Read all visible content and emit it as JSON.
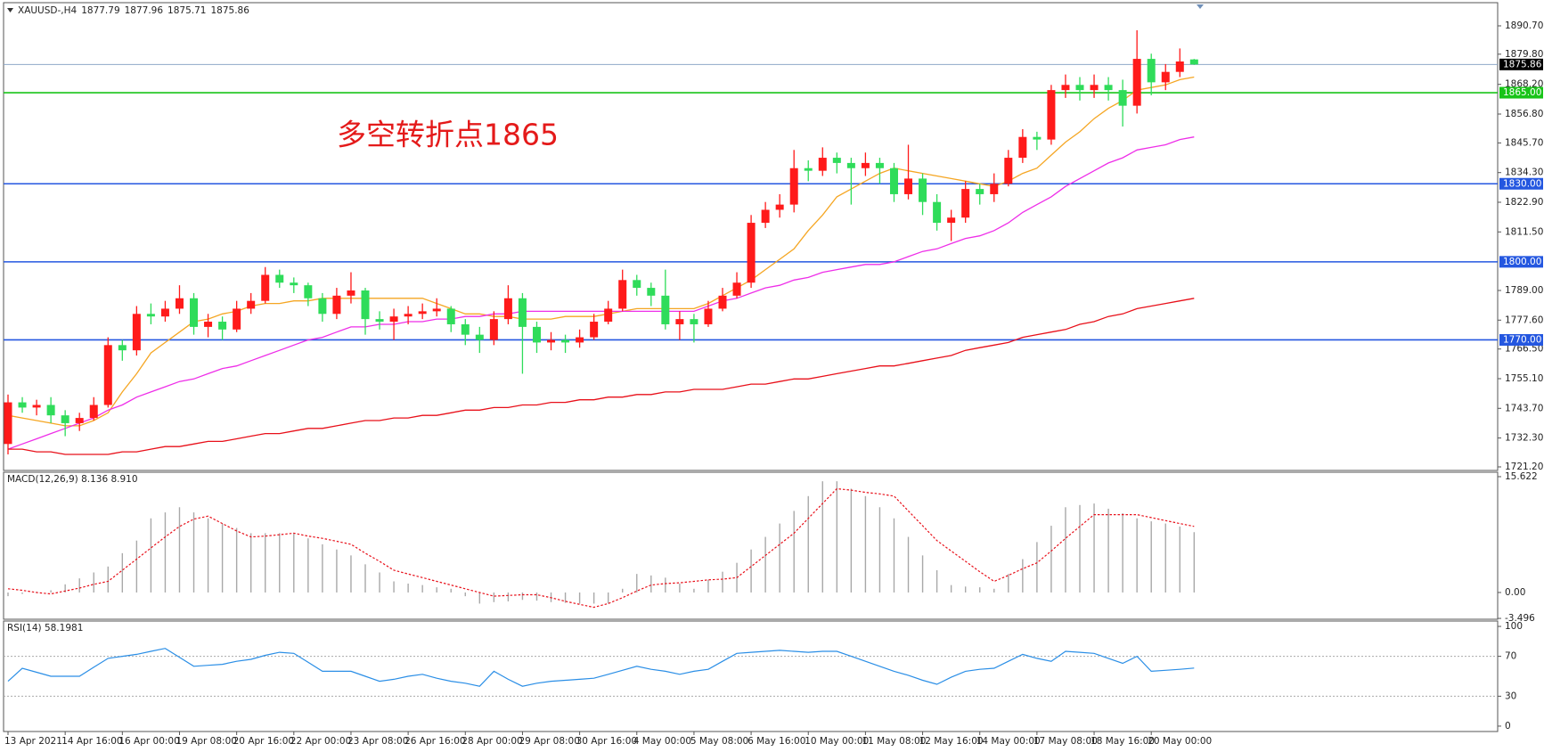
{
  "chart_data": [
    {
      "type": "candlestick",
      "title": "XAUUSD-,H4",
      "annotation": "多空转折点1865",
      "up_color": "#ff1a1a",
      "down_color": "#2fdc5a",
      "categories": [
        "13 Apr 2021",
        null,
        null,
        null,
        "14 Apr 16:00",
        null,
        null,
        null,
        "16 Apr 00:00",
        null,
        null,
        null,
        "19 Apr 08:00",
        null,
        null,
        null,
        "20 Apr 16:00",
        null,
        null,
        null,
        "22 Apr 00:00",
        null,
        null,
        null,
        "23 Apr 08:00",
        null,
        null,
        null,
        "26 Apr 16:00",
        null,
        null,
        null,
        "28 Apr 00:00",
        null,
        null,
        null,
        "29 Apr 08:00",
        null,
        null,
        null,
        "30 Apr 16:00",
        null,
        null,
        null,
        "4 May 00:00",
        null,
        null,
        null,
        "5 May 08:00",
        null,
        null,
        null,
        "6 May 16:00",
        null,
        null,
        null,
        "10 May 00:00",
        null,
        null,
        null,
        "11 May 08:00",
        null,
        null,
        null,
        "12 May 16:00",
        null,
        null,
        null,
        "14 May 00:00",
        null,
        null,
        null,
        "17 May 08:00",
        null,
        null,
        null,
        "18 May 16:00",
        null,
        null,
        null,
        "20 May 00:00",
        null,
        null,
        null
      ],
      "open": [
        1730,
        1746,
        1744,
        1745,
        1741,
        1738,
        1740,
        1745,
        1768,
        1766,
        1780,
        1779,
        1782,
        1786,
        1775,
        1777,
        1774,
        1782,
        1785,
        1795,
        1792,
        1791,
        1786,
        1780,
        1787,
        1789,
        1778,
        1777,
        1779,
        1780,
        1781,
        1782,
        1776,
        1772,
        1770,
        1778,
        1786,
        1775,
        1769,
        1770,
        1769,
        1771,
        1777,
        1782,
        1793,
        1790,
        1787,
        1776,
        1778,
        1776,
        1782,
        1787,
        1792,
        1815,
        1820,
        1822,
        1836,
        1835,
        1840,
        1838,
        1836,
        1838,
        1836,
        1826,
        1832,
        1823,
        1815,
        1817,
        1828,
        1826,
        1830,
        1840,
        1848,
        1847,
        1866,
        1868,
        1866,
        1868,
        1866,
        1860,
        1878,
        1869,
        1873,
        1877.79
      ],
      "high": [
        1749,
        1748,
        1747,
        1748,
        1743,
        1742,
        1748,
        1771,
        1770,
        1783,
        1784,
        1785,
        1791,
        1788,
        1780,
        1779,
        1785,
        1788,
        1798,
        1797,
        1794,
        1792,
        1788,
        1790,
        1796,
        1790,
        1781,
        1782,
        1783,
        1784,
        1786,
        1783,
        1778,
        1775,
        1781,
        1791,
        1788,
        1777,
        1773,
        1772,
        1774,
        1780,
        1785,
        1797,
        1795,
        1792,
        1797,
        1781,
        1780,
        1785,
        1790,
        1796,
        1818,
        1823,
        1826,
        1843,
        1839,
        1844,
        1842,
        1840,
        1842,
        1840,
        1838,
        1845,
        1834,
        1826,
        1820,
        1831,
        1830,
        1834,
        1843,
        1851,
        1850,
        1868,
        1872,
        1871,
        1872,
        1871,
        1870,
        1889,
        1880,
        1876,
        1882,
        1877.96
      ],
      "low": [
        1726,
        1742,
        1741,
        1738,
        1733,
        1735,
        1739,
        1744,
        1762,
        1764,
        1776,
        1777,
        1780,
        1772,
        1771,
        1770,
        1773,
        1780,
        1784,
        1790,
        1788,
        1783,
        1777,
        1778,
        1784,
        1772,
        1774,
        1770,
        1776,
        1778,
        1779,
        1773,
        1768,
        1765,
        1768,
        1776,
        1757,
        1765,
        1766,
        1765,
        1767,
        1770,
        1776,
        1781,
        1787,
        1783,
        1774,
        1770,
        1769,
        1775,
        1781,
        1786,
        1790,
        1813,
        1817,
        1819,
        1831,
        1833,
        1834,
        1822,
        1833,
        1830,
        1823,
        1824,
        1818,
        1812,
        1808,
        1815,
        1822,
        1823,
        1829,
        1838,
        1843,
        1845,
        1863,
        1862,
        1863,
        1862,
        1852,
        1857,
        1864,
        1866,
        1871,
        1875.71
      ],
      "close": [
        1746,
        1744,
        1745,
        1741,
        1738,
        1740,
        1745,
        1768,
        1766,
        1780,
        1779,
        1782,
        1786,
        1775,
        1777,
        1774,
        1782,
        1785,
        1795,
        1792,
        1791,
        1786,
        1780,
        1787,
        1789,
        1778,
        1777,
        1779,
        1780,
        1781,
        1782,
        1776,
        1772,
        1770,
        1778,
        1786,
        1775,
        1769,
        1770,
        1769,
        1771,
        1777,
        1782,
        1793,
        1790,
        1787,
        1776,
        1778,
        1776,
        1782,
        1787,
        1792,
        1815,
        1820,
        1822,
        1836,
        1835,
        1840,
        1838,
        1836,
        1838,
        1836,
        1826,
        1832,
        1823,
        1815,
        1817,
        1828,
        1826,
        1830,
        1840,
        1848,
        1847,
        1866,
        1868,
        1866,
        1868,
        1866,
        1860,
        1878,
        1869,
        1873,
        1877,
        1875.86
      ],
      "series": [
        {
          "color": "#f5a623",
          "values": [
            1741,
            1740,
            1739,
            1738,
            1737,
            1737,
            1739,
            1742,
            1750,
            1757,
            1765,
            1769,
            1773,
            1777,
            1778,
            1780,
            1781,
            1783,
            1784,
            1784,
            1785,
            1785,
            1786,
            1786,
            1786,
            1786,
            1786,
            1786,
            1786,
            1786,
            1784,
            1782,
            1780,
            1780,
            1779,
            1779,
            1778,
            1778,
            1778,
            1779,
            1779,
            1779,
            1780,
            1781,
            1782,
            1782,
            1782,
            1782,
            1782,
            1784,
            1787,
            1790,
            1793,
            1797,
            1801,
            1805,
            1812,
            1818,
            1825,
            1828,
            1831,
            1834,
            1836,
            1835,
            1834,
            1833,
            1832,
            1831,
            1830,
            1829,
            1831,
            1834,
            1836,
            1841,
            1846,
            1850,
            1855,
            1859,
            1862,
            1866,
            1867,
            1868,
            1870,
            1871
          ]
        },
        {
          "color": "#ee2ee8",
          "values": [
            1728,
            1730,
            1732,
            1734,
            1736,
            1738,
            1740,
            1743,
            1745,
            1748,
            1750,
            1752,
            1754,
            1755,
            1757,
            1759,
            1760,
            1762,
            1764,
            1766,
            1768,
            1770,
            1771,
            1773,
            1775,
            1775,
            1776,
            1776,
            1777,
            1777,
            1778,
            1778,
            1779,
            1779,
            1780,
            1780,
            1781,
            1781,
            1781,
            1781,
            1781,
            1781,
            1781,
            1781,
            1781,
            1781,
            1781,
            1781,
            1781,
            1783,
            1785,
            1786,
            1788,
            1790,
            1791,
            1793,
            1794,
            1796,
            1797,
            1798,
            1799,
            1799,
            1800,
            1802,
            1804,
            1805,
            1807,
            1809,
            1810,
            1812,
            1815,
            1819,
            1822,
            1825,
            1829,
            1832,
            1835,
            1838,
            1840,
            1843,
            1844,
            1845,
            1847,
            1848
          ]
        },
        {
          "color": "#e8101a",
          "values": [
            1728,
            1728,
            1727,
            1727,
            1726,
            1726,
            1726,
            1726,
            1727,
            1727,
            1728,
            1729,
            1729,
            1730,
            1731,
            1731,
            1732,
            1733,
            1734,
            1734,
            1735,
            1736,
            1736,
            1737,
            1738,
            1739,
            1739,
            1740,
            1740,
            1741,
            1741,
            1742,
            1743,
            1743,
            1744,
            1744,
            1745,
            1745,
            1746,
            1746,
            1747,
            1747,
            1748,
            1748,
            1749,
            1749,
            1750,
            1750,
            1751,
            1751,
            1751,
            1752,
            1753,
            1753,
            1754,
            1755,
            1755,
            1756,
            1757,
            1758,
            1759,
            1760,
            1760,
            1761,
            1762,
            1763,
            1764,
            1766,
            1767,
            1768,
            1769,
            1771,
            1772,
            1773,
            1774,
            1776,
            1777,
            1779,
            1780,
            1782,
            1783,
            1784,
            1785,
            1786
          ]
        }
      ],
      "levels": [
        {
          "value": 1865,
          "label": "1865.00",
          "color": "#18c418"
        },
        {
          "value": 1830,
          "label": "1830.00",
          "color": "#2457e0"
        },
        {
          "value": 1800,
          "label": "1800.00",
          "color": "#2457e0"
        },
        {
          "value": 1770,
          "label": "1770.00",
          "color": "#2457e0"
        }
      ],
      "current_price": {
        "value": 1875.86,
        "label": "1875.86",
        "color": "#8fa8c8"
      },
      "ylim": [
        1719.83,
        1899.6
      ],
      "yticks": [
        {
          "value": 1890.7,
          "label": "1890.70"
        },
        {
          "value": 1879.8,
          "label": "1879.80"
        },
        {
          "value": 1868.2,
          "label": "1868.20"
        },
        {
          "value": 1856.8,
          "label": "1856.80"
        },
        {
          "value": 1845.7,
          "label": "1845.70"
        },
        {
          "value": 1834.3,
          "label": "1834.30"
        },
        {
          "value": 1822.9,
          "label": "1822.90"
        },
        {
          "value": 1811.5,
          "label": "1811.50"
        },
        {
          "value": 1789,
          "label": "1789.00"
        },
        {
          "value": 1777.6,
          "label": "1777.60"
        },
        {
          "value": 1766.5,
          "label": "1766.50"
        },
        {
          "value": 1755.1,
          "label": "1755.10"
        },
        {
          "value": 1743.7,
          "label": "1743.70"
        },
        {
          "value": 1732.3,
          "label": "1732.30"
        },
        {
          "value": 1721.2,
          "label": "1721.20"
        }
      ]
    },
    {
      "type": "macd",
      "title": "MACD(12,26,9) 8.136 8.910",
      "histogram": {
        "color": "#a8a8a8",
        "values": [
          -0.5,
          -0.2,
          0.1,
          0.3,
          1.1,
          1.9,
          2.7,
          3.5,
          5.3,
          7,
          10,
          10.8,
          11.5,
          10.8,
          10,
          9.3,
          8.7,
          8,
          8,
          8,
          8,
          7.3,
          6.5,
          5.8,
          5,
          3.8,
          2.7,
          1.5,
          1.2,
          1,
          0.7,
          0.5,
          -0.5,
          -1.5,
          -1.3,
          -1.2,
          -1,
          -1.1,
          -1.3,
          -1.4,
          -1.5,
          -1.5,
          -1.5,
          0.5,
          2.5,
          2.3,
          2,
          1.2,
          0.5,
          1.7,
          2.8,
          4,
          5.8,
          7.5,
          9.3,
          11,
          13,
          15,
          15,
          14,
          13,
          11.5,
          10,
          7.5,
          5,
          3,
          1,
          0.8,
          0.7,
          0.5,
          2.5,
          4.5,
          6.8,
          9,
          11.5,
          11.8,
          12,
          11.3,
          10.7,
          10,
          9.6,
          9.3,
          8.9,
          8.136
        ]
      },
      "signal": {
        "color": "#e8101a",
        "values": [
          0.5,
          0.3,
          0,
          -0.2,
          0.2,
          0.6,
          1.1,
          1.5,
          3,
          4.5,
          6,
          7.5,
          8.9,
          9.9,
          10.3,
          9.3,
          8.3,
          7.5,
          7.6,
          7.8,
          8,
          7.6,
          7.3,
          6.9,
          6.5,
          5.3,
          4.2,
          3,
          2.5,
          2,
          1.5,
          1,
          0.5,
          0,
          -0.5,
          -0.4,
          -0.3,
          -0.3,
          -0.7,
          -1.2,
          -1.6,
          -2,
          -1.5,
          -0.7,
          0.2,
          1,
          1.2,
          1.3,
          1.5,
          1.7,
          1.8,
          2,
          3.5,
          5,
          6.5,
          8,
          10,
          12,
          14,
          13.8,
          13.5,
          13.3,
          13,
          11,
          9,
          7,
          5.6,
          4.2,
          2.8,
          1.5,
          2.3,
          3.2,
          4,
          5.6,
          7.3,
          8.9,
          10.5,
          10.5,
          10.5,
          10.5,
          10.1,
          9.7,
          9.3,
          8.91
        ]
      },
      "ylim": [
        -3.61,
        16.22
      ],
      "yticks": [
        15.622,
        {
          "value": 0,
          "label": "0.00"
        },
        -3.496
      ]
    },
    {
      "type": "line",
      "title": "RSI(14) 58.1981",
      "color": "#2a8ee6",
      "values": [
        45,
        58,
        54,
        50,
        50,
        50,
        59,
        68,
        70,
        72,
        75,
        78,
        69,
        60,
        61,
        62,
        65,
        67,
        71,
        74,
        73,
        64,
        55,
        55,
        55,
        50,
        45,
        47,
        50,
        52,
        48,
        45,
        43,
        40,
        55,
        47,
        40,
        43,
        45,
        46,
        47,
        48,
        52,
        56,
        60,
        57,
        55,
        52,
        55,
        57,
        65,
        73,
        74,
        75,
        76,
        75,
        74,
        75,
        75,
        70,
        65,
        60,
        55,
        51,
        46,
        42,
        49,
        55,
        57,
        58,
        65,
        72,
        68,
        65,
        75,
        74,
        73,
        68,
        63,
        70,
        55,
        56,
        57,
        58.1981
      ],
      "levels": [
        70,
        30
      ],
      "ylim": [
        -5.4,
        105.4
      ],
      "yticks": [
        100,
        70,
        30,
        0
      ]
    }
  ]
}
